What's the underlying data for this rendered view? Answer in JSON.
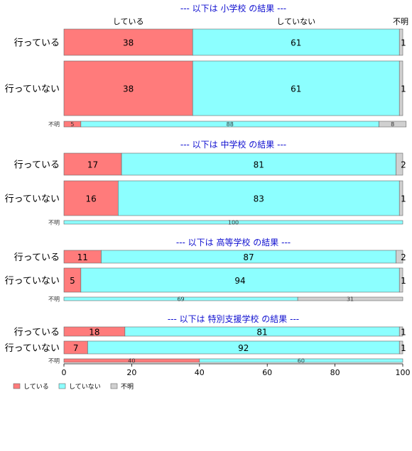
{
  "chart_data": {
    "type": "bar",
    "orientation": "horizontal",
    "stacked": true,
    "xlim": [
      0,
      100
    ],
    "xticks": [
      "0",
      "20",
      "40",
      "60",
      "80",
      "100"
    ],
    "top_column_labels": [
      "している",
      "していない",
      "不明"
    ],
    "legend": {
      "position": "bottom-left",
      "items": [
        {
          "label": "している",
          "color": "#ff7b7b"
        },
        {
          "label": "していない",
          "color": "#8cffff"
        },
        {
          "label": "不明",
          "color": "#d0d0d0"
        }
      ]
    },
    "panels": [
      {
        "title": "--- 以下は 小学校 の結果 ---",
        "rows": [
          {
            "label": "行っている",
            "values": [
              38,
              61,
              1
            ],
            "value_labels": [
              "38",
              "61",
              "1"
            ]
          },
          {
            "label": "行っていない",
            "values": [
              38,
              61,
              1
            ],
            "value_labels": [
              "38",
              "61",
              "1"
            ]
          },
          {
            "label": "不明",
            "values": [
              5,
              88,
              8
            ],
            "value_labels": [
              "5",
              "88",
              "8"
            ]
          }
        ]
      },
      {
        "title": "--- 以下は 中学校 の結果 ---",
        "rows": [
          {
            "label": "行っている",
            "values": [
              17,
              81,
              2
            ],
            "value_labels": [
              "17",
              "81",
              "2"
            ]
          },
          {
            "label": "行っていない",
            "values": [
              16,
              83,
              1
            ],
            "value_labels": [
              "16",
              "83",
              "1"
            ]
          },
          {
            "label": "不明",
            "values": [
              0,
              100,
              0
            ],
            "value_labels": [
              "",
              "100",
              ""
            ]
          }
        ]
      },
      {
        "title": "--- 以下は 高等学校 の結果 ---",
        "rows": [
          {
            "label": "行っている",
            "values": [
              11,
              87,
              2
            ],
            "value_labels": [
              "11",
              "87",
              "2"
            ]
          },
          {
            "label": "行っていない",
            "values": [
              5,
              94,
              1
            ],
            "value_labels": [
              "5",
              "94",
              "1"
            ]
          },
          {
            "label": "不明",
            "values": [
              0,
              69,
              31
            ],
            "value_labels": [
              "",
              "69",
              "31"
            ]
          }
        ]
      },
      {
        "title": "--- 以下は 特別支援学校 の結果 ---",
        "rows": [
          {
            "label": "行っている",
            "values": [
              18,
              81,
              1
            ],
            "value_labels": [
              "18",
              "81",
              "1"
            ]
          },
          {
            "label": "行っていない",
            "values": [
              7,
              92,
              1
            ],
            "value_labels": [
              "7",
              "92",
              "1"
            ]
          },
          {
            "label": "不明",
            "values": [
              40,
              60,
              0
            ],
            "value_labels": [
              "40",
              "60",
              ""
            ]
          }
        ]
      }
    ]
  }
}
